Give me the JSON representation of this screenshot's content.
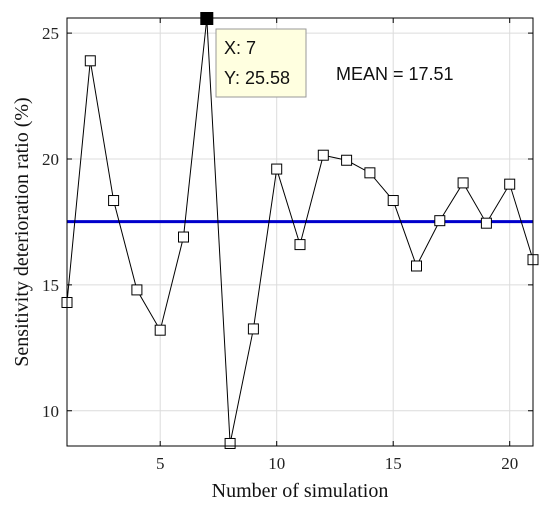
{
  "chart_data": {
    "type": "line",
    "xlabel": "Number of simulation",
    "ylabel": "Sensitivity deterioration ratio (%)",
    "xlim": [
      1,
      21
    ],
    "ylim": [
      8.6,
      25.6
    ],
    "xticks": [
      5,
      10,
      15,
      20
    ],
    "yticks": [
      10,
      15,
      20,
      25
    ],
    "grid": true,
    "series": [
      {
        "x": [
          1,
          2,
          3,
          4,
          5,
          6,
          7,
          8,
          9,
          10,
          11,
          12,
          13,
          14,
          15,
          16,
          17,
          18,
          19,
          20,
          21
        ],
        "y": [
          14.3,
          23.9,
          18.35,
          14.8,
          13.2,
          16.9,
          25.58,
          8.7,
          13.25,
          19.6,
          16.6,
          20.15,
          19.95,
          19.45,
          18.35,
          15.75,
          17.55,
          19.05,
          17.45,
          19.0,
          16.0
        ],
        "color": "#000000",
        "marker": "square"
      }
    ],
    "mean_line": {
      "y": 17.51,
      "color": "#0000cc"
    },
    "annotations": {
      "mean_text": "MEAN = 17.51",
      "datatip": {
        "point_index": 6,
        "x_text": "X: 7",
        "y_text": "Y: 25.58"
      }
    }
  }
}
